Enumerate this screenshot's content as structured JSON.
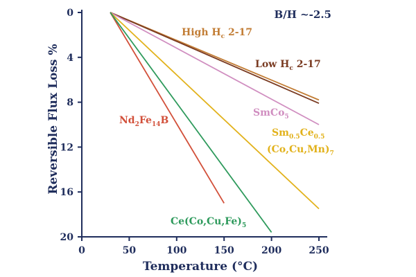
{
  "chart_data": {
    "type": "line",
    "title": "",
    "xlabel": "Temperature (°C)",
    "ylabel": "Reversible Flux Loss %",
    "xlim": [
      0,
      250
    ],
    "ylim": [
      0,
      20
    ],
    "y_inverted": true,
    "xticks": [
      0,
      50,
      100,
      150,
      200,
      250
    ],
    "yticks": [
      0,
      4,
      8,
      12,
      16,
      20
    ],
    "annotation": "B/H ~-2.5",
    "colors": {
      "axis": "#1f2d5c",
      "high_hc": "#c27d35",
      "low_hc": "#7a3b22",
      "smco5": "#d08ec0",
      "smce": "#e2b21c",
      "ndfeb": "#d2503a",
      "ce": "#2e9a5c"
    },
    "series": [
      {
        "name": "High Hc 2-17",
        "label": {
          "main": "High H",
          "sub": "c",
          "after": " 2-17"
        },
        "x": [
          30,
          250
        ],
        "y": [
          0,
          7.8
        ]
      },
      {
        "name": "Low Hc 2-17",
        "label": {
          "main": "Low H",
          "sub": "c",
          "after": " 2-17"
        },
        "x": [
          30,
          250
        ],
        "y": [
          0,
          8.1
        ]
      },
      {
        "name": "SmCo5",
        "label": {
          "main": "SmCo",
          "sub": "5",
          "after": ""
        },
        "x": [
          30,
          250
        ],
        "y": [
          0,
          10
        ]
      },
      {
        "name": "Sm0.5Ce0.5(Co,Cu,Mn)7",
        "label": {
          "line1": {
            "a": "Sm",
            "b": "0.5",
            "c": "Ce",
            "d": "0.5"
          },
          "line2": {
            "main": "(Co,Cu,Mn)",
            "sub": "7"
          }
        },
        "x": [
          30,
          250
        ],
        "y": [
          0,
          17.5
        ]
      },
      {
        "name": "Nd2Fe14B",
        "label": {
          "a": "Nd",
          "b": "2",
          "c": "Fe",
          "d": "14",
          "e": "B"
        },
        "x": [
          30,
          150
        ],
        "y": [
          0,
          17
        ]
      },
      {
        "name": "Ce(Co,Cu,Fe)5",
        "label": {
          "main": "Ce(Co,Cu,Fe)",
          "sub": "5"
        },
        "x": [
          30,
          200
        ],
        "y": [
          0,
          19.6
        ]
      }
    ]
  }
}
